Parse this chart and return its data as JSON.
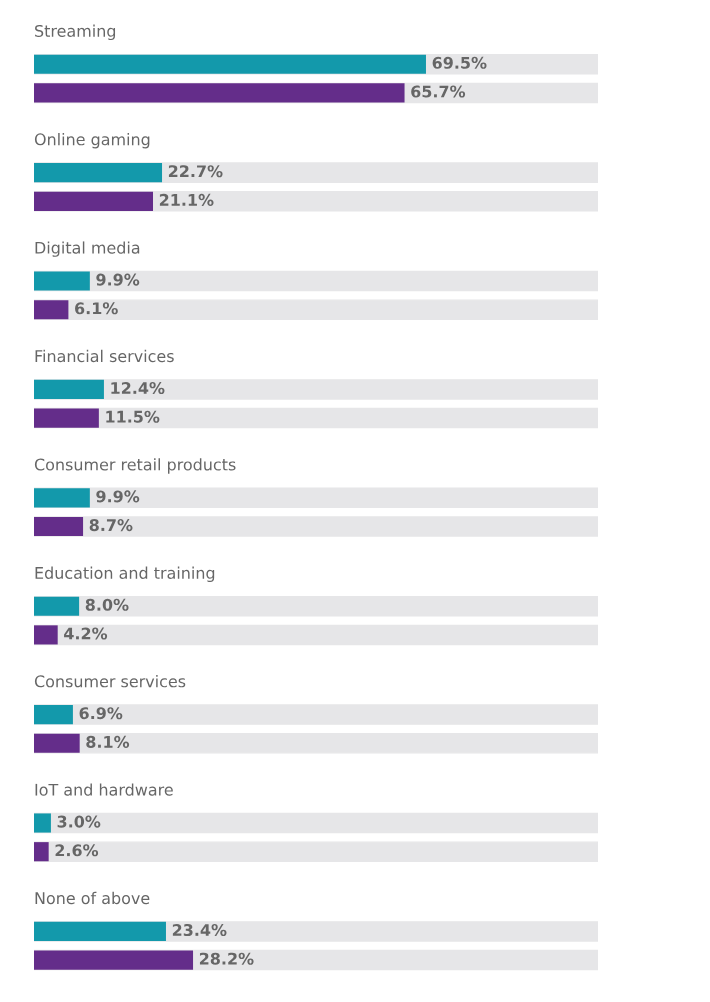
{
  "chart_data": {
    "type": "bar",
    "orientation": "horizontal",
    "categories": [
      "Streaming",
      "Online gaming",
      "Digital media",
      "Financial services",
      "Consumer retail products",
      "Education and training",
      "Consumer services",
      "IoT and hardware",
      "None of above"
    ],
    "series": [
      {
        "color": "#1399ab",
        "values": [
          69.5,
          22.7,
          9.9,
          12.4,
          9.9,
          8.0,
          6.9,
          3.0,
          23.4
        ],
        "value_labels": [
          "69.5%",
          "22.7%",
          "9.9%",
          "12.4%",
          "9.9%",
          "8.0%",
          "6.9%",
          "3.0%",
          "23.4%"
        ]
      },
      {
        "color": "#642d8a",
        "values": [
          65.7,
          21.1,
          6.1,
          11.5,
          8.7,
          4.2,
          8.1,
          2.6,
          28.2
        ],
        "value_labels": [
          "65.7%",
          "21.1%",
          "6.1%",
          "11.5%",
          "8.7%",
          "4.2%",
          "8.1%",
          "2.6%",
          "28.2%"
        ]
      }
    ],
    "xlim": [
      0,
      100
    ],
    "tick_labels": false
  }
}
